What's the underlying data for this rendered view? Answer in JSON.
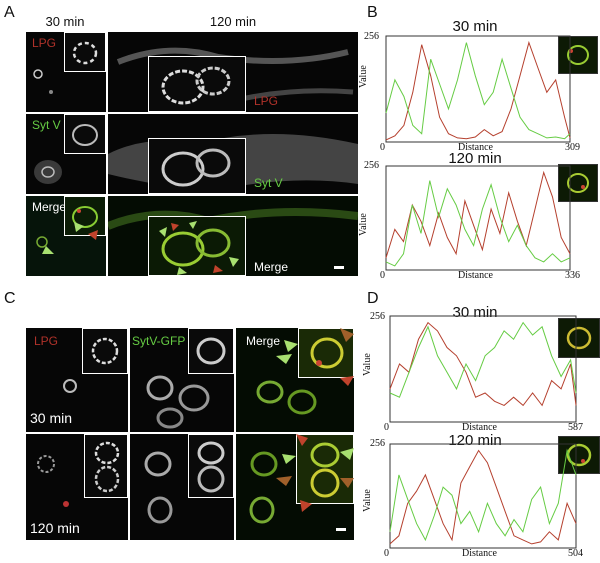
{
  "panel_labels": {
    "A": "A",
    "B": "B",
    "C": "C",
    "D": "D"
  },
  "panelA": {
    "col_titles": [
      "30 min",
      "120 min"
    ],
    "row_labels": [
      "LPG",
      "Syt V",
      "Merge"
    ],
    "label_120_lpg": "LPG",
    "label_120_sytv": "Syt V",
    "label_120_merge": "Merge"
  },
  "panelC": {
    "col_labels": [
      "LPG",
      "SytV-GFP",
      "Merge"
    ],
    "row_labels": [
      "30 min",
      "120 min"
    ]
  },
  "colors": {
    "red": "#b5402e",
    "green": "#66cc44",
    "lpg_label": "#b0322a",
    "syt_label": "#66cc44"
  },
  "chart_data": [
    {
      "id": "B-30",
      "type": "line",
      "title": "30 min",
      "xlabel": "Distance",
      "ylabel": "Value",
      "xlim": [
        0,
        309
      ],
      "ylim": [
        0,
        256
      ],
      "x_ticks": [
        "0",
        "309"
      ],
      "y_ticks": [
        "256"
      ],
      "series": [
        {
          "color": "#b5402e",
          "x": [
            0,
            15,
            30,
            45,
            60,
            75,
            90,
            105,
            120,
            135,
            150,
            165,
            180,
            195,
            210,
            225,
            240,
            255,
            270,
            285,
            300,
            309
          ],
          "y": [
            5,
            15,
            40,
            120,
            235,
            160,
            60,
            20,
            10,
            8,
            12,
            30,
            15,
            25,
            80,
            160,
            240,
            180,
            120,
            150,
            60,
            10
          ]
        },
        {
          "color": "#66cc44",
          "x": [
            0,
            15,
            30,
            45,
            60,
            75,
            90,
            105,
            120,
            135,
            150,
            165,
            180,
            195,
            210,
            225,
            240,
            255,
            270,
            285,
            300,
            309
          ],
          "y": [
            70,
            150,
            110,
            40,
            20,
            200,
            140,
            80,
            150,
            240,
            160,
            90,
            120,
            200,
            130,
            60,
            30,
            20,
            10,
            12,
            8,
            20
          ]
        }
      ]
    },
    {
      "id": "B-120",
      "type": "line",
      "title": "120 min",
      "xlabel": "Distance",
      "ylabel": "Value",
      "xlim": [
        0,
        336
      ],
      "ylim": [
        0,
        256
      ],
      "x_ticks": [
        "0",
        "336"
      ],
      "y_ticks": [
        "256"
      ],
      "series": [
        {
          "color": "#b5402e",
          "x": [
            0,
            16,
            32,
            48,
            64,
            80,
            96,
            112,
            128,
            144,
            160,
            176,
            192,
            208,
            224,
            240,
            256,
            272,
            288,
            304,
            320,
            336
          ],
          "y": [
            30,
            100,
            70,
            160,
            120,
            60,
            140,
            80,
            40,
            170,
            110,
            50,
            150,
            90,
            190,
            120,
            60,
            150,
            240,
            180,
            80,
            40
          ]
        },
        {
          "color": "#66cc44",
          "x": [
            0,
            16,
            32,
            48,
            64,
            80,
            96,
            112,
            128,
            144,
            160,
            176,
            192,
            208,
            224,
            240,
            256,
            272,
            288,
            304,
            320,
            336
          ],
          "y": [
            20,
            10,
            40,
            160,
            90,
            220,
            130,
            200,
            160,
            100,
            60,
            150,
            210,
            130,
            70,
            110,
            60,
            30,
            20,
            40,
            20,
            30
          ]
        }
      ]
    },
    {
      "id": "D-30",
      "type": "line",
      "title": "30 min",
      "xlabel": "Distance",
      "ylabel": "Value",
      "xlim": [
        0,
        587
      ],
      "ylim": [
        0,
        256
      ],
      "x_ticks": [
        "0",
        "587"
      ],
      "y_ticks": [
        "256"
      ],
      "series": [
        {
          "color": "#b5402e",
          "x": [
            0,
            30,
            60,
            90,
            120,
            150,
            180,
            210,
            240,
            270,
            300,
            330,
            360,
            390,
            420,
            450,
            480,
            510,
            540,
            570,
            587
          ],
          "y": [
            80,
            140,
            120,
            200,
            240,
            220,
            180,
            160,
            120,
            60,
            70,
            50,
            40,
            60,
            40,
            70,
            40,
            100,
            80,
            140,
            40
          ]
        },
        {
          "color": "#66cc44",
          "x": [
            0,
            30,
            60,
            90,
            120,
            150,
            180,
            210,
            240,
            270,
            300,
            330,
            360,
            390,
            420,
            450,
            480,
            510,
            540,
            570,
            587
          ],
          "y": [
            70,
            60,
            120,
            180,
            230,
            160,
            120,
            80,
            140,
            100,
            160,
            180,
            220,
            200,
            240,
            210,
            230,
            160,
            110,
            150,
            70
          ]
        }
      ]
    },
    {
      "id": "D-120",
      "type": "line",
      "title": "120 min",
      "xlabel": "Distance",
      "ylabel": "Value",
      "xlim": [
        0,
        504
      ],
      "ylim": [
        0,
        256
      ],
      "x_ticks": [
        "0",
        "504"
      ],
      "y_ticks": [
        "256"
      ],
      "series": [
        {
          "color": "#b5402e",
          "x": [
            0,
            24,
            48,
            72,
            96,
            120,
            144,
            168,
            192,
            216,
            240,
            264,
            288,
            312,
            336,
            360,
            384,
            408,
            432,
            456,
            480,
            504
          ],
          "y": [
            10,
            30,
            110,
            140,
            180,
            120,
            60,
            20,
            160,
            200,
            240,
            210,
            150,
            90,
            30,
            20,
            10,
            15,
            40,
            20,
            110,
            60
          ]
        },
        {
          "color": "#66cc44",
          "x": [
            0,
            24,
            48,
            72,
            96,
            120,
            144,
            168,
            192,
            216,
            240,
            264,
            288,
            312,
            336,
            360,
            384,
            408,
            432,
            456,
            480,
            504
          ],
          "y": [
            40,
            180,
            120,
            60,
            20,
            80,
            150,
            130,
            60,
            90,
            40,
            110,
            60,
            30,
            70,
            40,
            120,
            150,
            60,
            110,
            240,
            180
          ]
        }
      ]
    }
  ]
}
